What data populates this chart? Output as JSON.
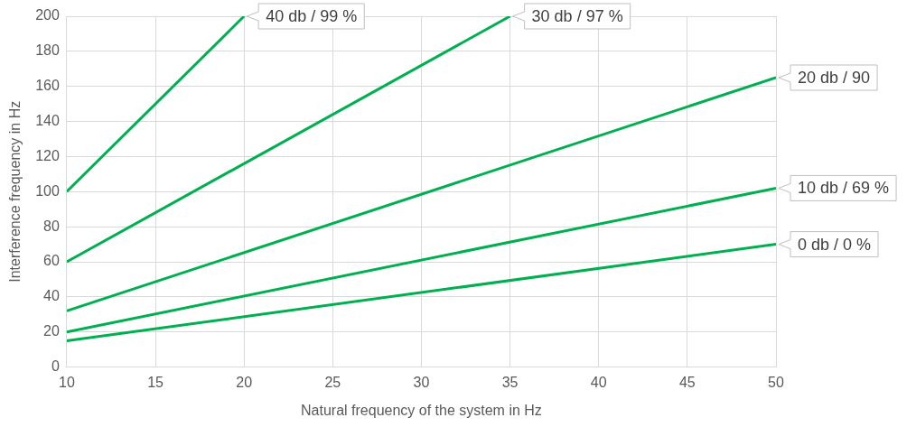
{
  "chart_data": {
    "type": "line",
    "xlabel": "Natural frequency of the system in Hz",
    "ylabel": "Interference frequency in Hz",
    "xlim": [
      10,
      50
    ],
    "xticks": [
      10,
      15,
      20,
      25,
      30,
      35,
      40,
      45,
      50
    ],
    "ylim": [
      0,
      200
    ],
    "yticks": [
      0,
      20,
      40,
      60,
      80,
      100,
      120,
      140,
      160,
      180,
      200
    ],
    "grid": true,
    "marker": "none",
    "line_style": "solid",
    "series": [
      {
        "name": "0 db / 0 %",
        "color": "#00b050",
        "x": [
          10,
          50
        ],
        "values": [
          15,
          70
        ]
      },
      {
        "name": "10 db / 69 %",
        "color": "#00b050",
        "x": [
          10,
          50
        ],
        "values": [
          20,
          102
        ]
      },
      {
        "name": "20 db / 90",
        "color": "#00b050",
        "x": [
          10,
          50
        ],
        "values": [
          32,
          165
        ]
      },
      {
        "name": "30 db / 97 %",
        "color": "#00b050",
        "x": [
          10,
          35
        ],
        "values": [
          60,
          200
        ]
      },
      {
        "name": "40 db / 99 %",
        "color": "#00b050",
        "x": [
          10,
          20
        ],
        "values": [
          100,
          200
        ]
      }
    ]
  }
}
